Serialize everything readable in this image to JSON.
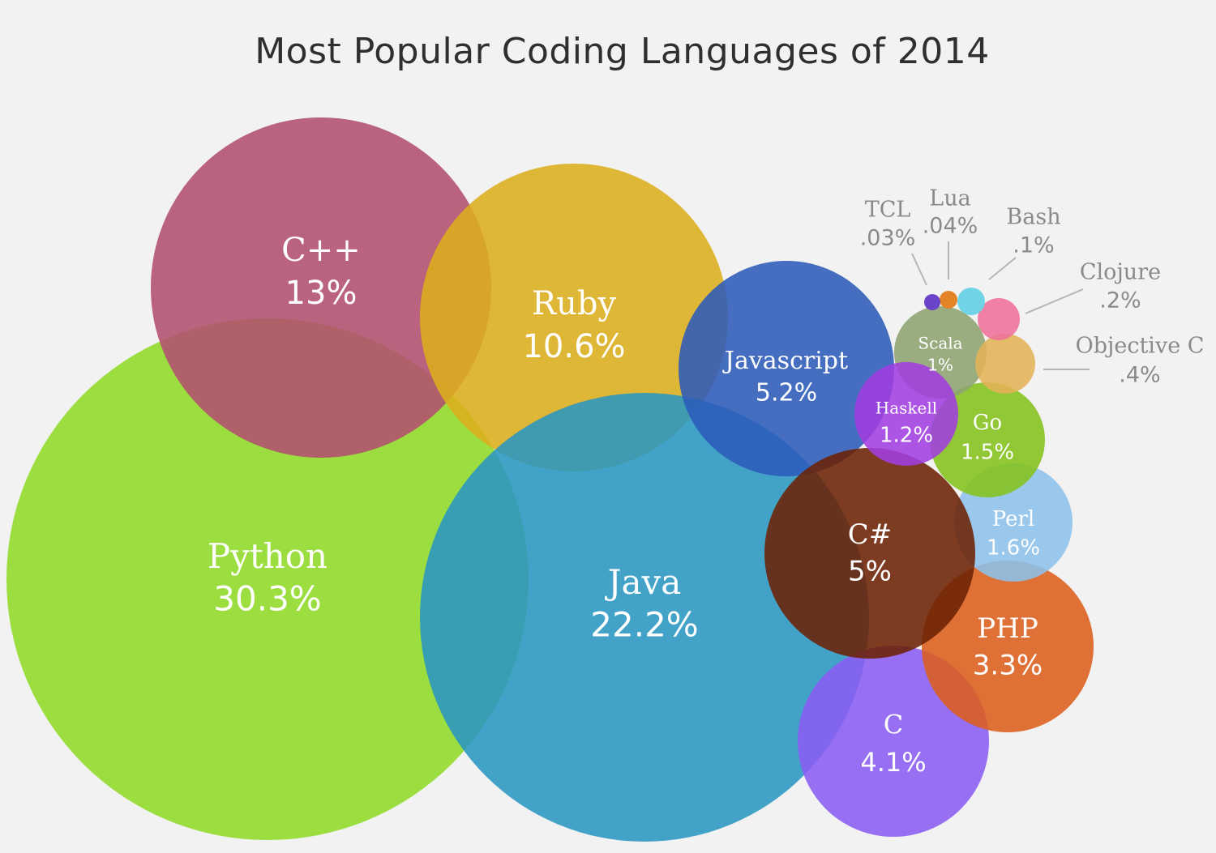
{
  "chart_data": {
    "type": "bubble",
    "title": "Most Popular Coding Languages of 2014",
    "series": [
      {
        "name": "Python",
        "value_label": "30.3%",
        "value": 30.3,
        "color": "#8fdb27"
      },
      {
        "name": "C++",
        "value_label": "13%",
        "value": 13,
        "color": "#b24f6e"
      },
      {
        "name": "Ruby",
        "value_label": "10.6%",
        "value": 10.6,
        "color": "#dcae1d"
      },
      {
        "name": "Java",
        "value_label": "22.2%",
        "value": 22.2,
        "color": "#2a96c2"
      },
      {
        "name": "Javascript",
        "value_label": "5.2%",
        "value": 5.2,
        "color": "#2c5bb9"
      },
      {
        "name": "C",
        "value_label": "4.1%",
        "value": 4.1,
        "color": "#8a5cf2"
      },
      {
        "name": "PHP",
        "value_label": "3.3%",
        "value": 3.3,
        "color": "#dc5e1c"
      },
      {
        "name": "Perl",
        "value_label": "1.6%",
        "value": 1.6,
        "color": "#8cc1ea"
      },
      {
        "name": "C#",
        "value_label": "5%",
        "value": 5,
        "color": "#6c2204"
      },
      {
        "name": "Go",
        "value_label": "1.5%",
        "value": 1.5,
        "color": "#84c11a"
      },
      {
        "name": "Scala",
        "value_label": "1%",
        "value": 1,
        "color": "#8ca370"
      },
      {
        "name": "Haskell",
        "value_label": "1.2%",
        "value": 1.2,
        "color": "#a23ee0"
      },
      {
        "name": "Objective C",
        "value_label": ".4%",
        "value": 0.4,
        "color": "#e2b358"
      },
      {
        "name": "Clojure",
        "value_label": ".2%",
        "value": 0.2,
        "color": "#ef6f9a"
      },
      {
        "name": "Bash",
        "value_label": ".1%",
        "value": 0.1,
        "color": "#70d4e6"
      },
      {
        "name": "Lua",
        "value_label": ".04%",
        "value": 0.04,
        "color": "#e48426"
      },
      {
        "name": "TCL",
        "value_label": ".03%",
        "value": 0.03,
        "color": "#6a44c8"
      }
    ]
  }
}
